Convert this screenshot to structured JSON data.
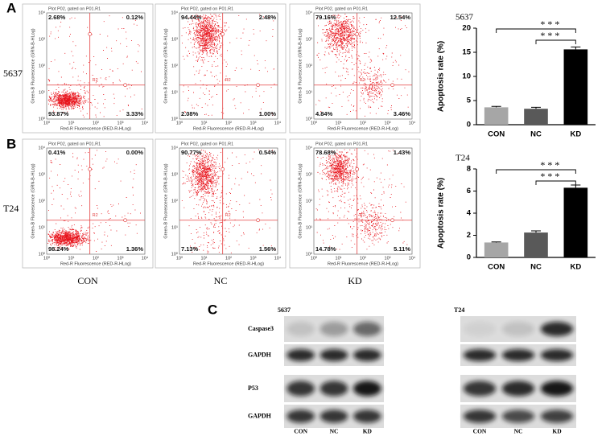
{
  "panel_labels": [
    "A",
    "B",
    "C"
  ],
  "flow_cytometry": {
    "plot_header": "Plot P02, gated on P01.R1",
    "x_axis_label": "Red-R Fluorescence (RED-R-HLog)",
    "y_axis_label": "Green-B Fluorescence (GRN-B-HLog)",
    "gate_label": "R2",
    "ticks": [
      "10⁰",
      "10¹",
      "10²",
      "10³",
      "10⁴"
    ],
    "groups": [
      "CON",
      "NC",
      "KD"
    ],
    "rows": [
      {
        "cell_line": "5637",
        "plots": [
          {
            "upper_left": "2.68%",
            "upper_right": "0.12%",
            "lower_left": "93.87%",
            "lower_right": "3.33%"
          },
          {
            "upper_left": "94.44%",
            "upper_right": "2.48%",
            "lower_left": "2.08%",
            "lower_right": "1.00%"
          },
          {
            "upper_left": "79.16%",
            "upper_right": "12.54%",
            "lower_left": "4.84%",
            "lower_right": "3.46%"
          }
        ]
      },
      {
        "cell_line": "T24",
        "plots": [
          {
            "upper_left": "0.41%",
            "upper_right": "0.00%",
            "lower_left": "98.24%",
            "lower_right": "1.36%"
          },
          {
            "upper_left": "90.77%",
            "upper_right": "0.54%",
            "lower_left": "7.13%",
            "lower_right": "1.56%"
          },
          {
            "upper_left": "78.68%",
            "upper_right": "1.43%",
            "lower_left": "14.78%",
            "lower_right": "5.11%"
          }
        ]
      }
    ]
  },
  "chart_data": [
    {
      "type": "bar",
      "title": "5637",
      "y_label": "Apoptosis rate (%)",
      "categories": [
        "CON",
        "NC",
        "KD"
      ],
      "values": [
        3.6,
        3.3,
        15.6
      ],
      "errors": [
        0.2,
        0.3,
        0.5
      ],
      "colors": [
        "#a6a6a6",
        "#595959",
        "#000000"
      ],
      "ylim": [
        0,
        20
      ],
      "yticks": [
        0,
        5,
        10,
        15,
        20
      ],
      "comparisons": [
        {
          "pair": [
            0,
            2
          ],
          "label": "* * *"
        },
        {
          "pair": [
            1,
            2
          ],
          "label": "* * *"
        }
      ]
    },
    {
      "type": "bar",
      "title": "T24",
      "y_label": "Apoptosis rate (%)",
      "categories": [
        "CON",
        "NC",
        "KD"
      ],
      "values": [
        1.35,
        2.25,
        6.3
      ],
      "errors": [
        0.05,
        0.15,
        0.25
      ],
      "colors": [
        "#a6a6a6",
        "#595959",
        "#000000"
      ],
      "ylim": [
        0,
        8
      ],
      "yticks": [
        0,
        2,
        4,
        6,
        8
      ],
      "comparisons": [
        {
          "pair": [
            0,
            2
          ],
          "label": "* * *"
        },
        {
          "pair": [
            1,
            2
          ],
          "label": "* * *"
        }
      ]
    }
  ],
  "western_blot": {
    "blots": [
      {
        "cell_line": "5637",
        "lanes": [
          "CON",
          "NC",
          "KD"
        ]
      },
      {
        "cell_line": "T24",
        "lanes": [
          "CON",
          "NC",
          "KD"
        ]
      }
    ],
    "row_labels": [
      "Caspase3",
      "GAPDH",
      "P53",
      "GAPDH"
    ]
  }
}
